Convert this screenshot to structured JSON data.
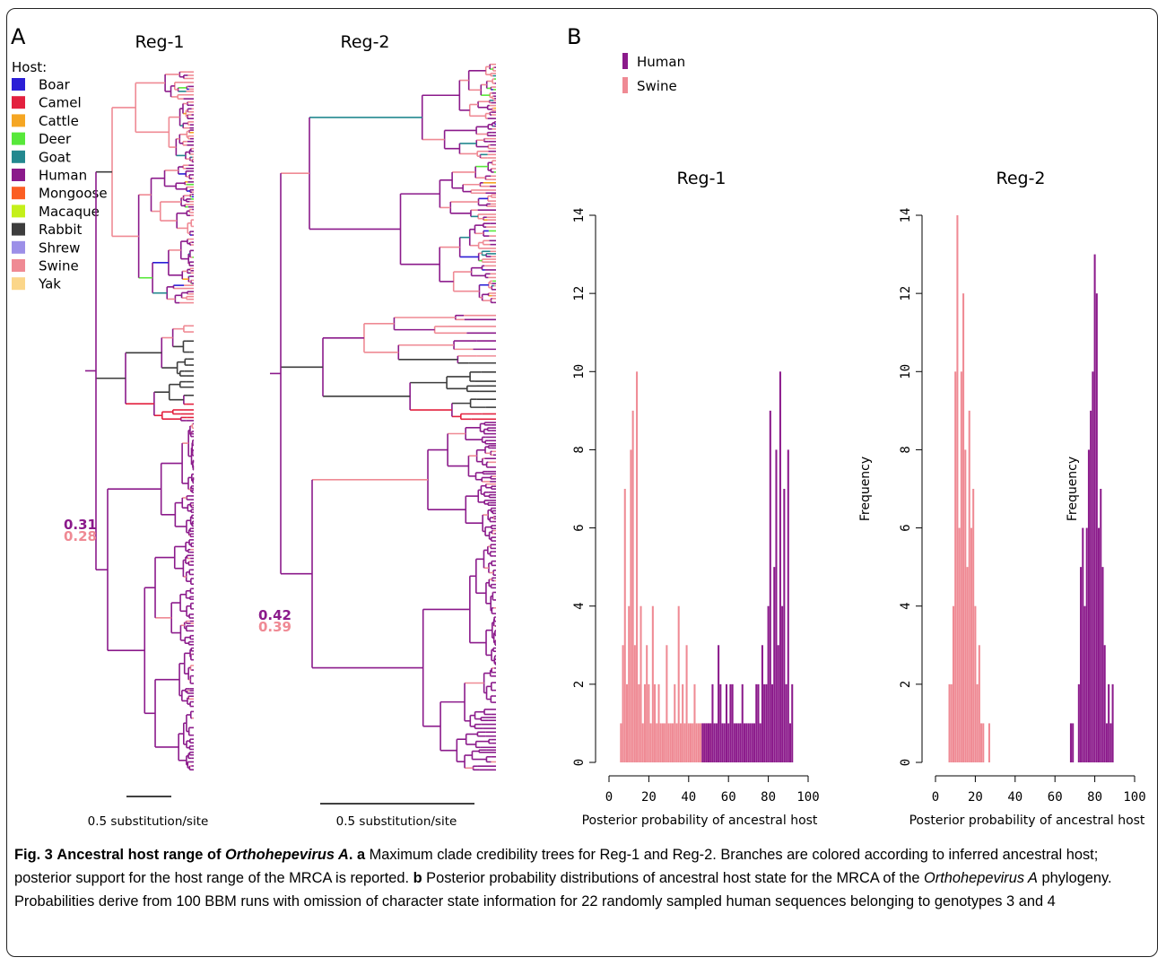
{
  "panel_a": {
    "label": "A",
    "tree_titles": [
      "Reg-1",
      "Reg-2"
    ],
    "legend_title": "Host:",
    "hosts": [
      {
        "name": "Boar",
        "color": "#2b1fd6"
      },
      {
        "name": "Camel",
        "color": "#e3203e"
      },
      {
        "name": "Cattle",
        "color": "#f5a623"
      },
      {
        "name": "Deer",
        "color": "#57e83a"
      },
      {
        "name": "Goat",
        "color": "#23888f"
      },
      {
        "name": "Human",
        "color": "#8b1a8b"
      },
      {
        "name": "Mongoose",
        "color": "#fb5e23"
      },
      {
        "name": "Macaque",
        "color": "#c4f01a"
      },
      {
        "name": "Rabbit",
        "color": "#3d3d3d"
      },
      {
        "name": "Shrew",
        "color": "#9c8fe8"
      },
      {
        "name": "Swine",
        "color": "#ef8a94"
      },
      {
        "name": "Yak",
        "color": "#fbd68a"
      }
    ],
    "reg1_support": {
      "human": "0.31",
      "swine": "0.28"
    },
    "reg2_support": {
      "human": "0.42",
      "swine": "0.39"
    },
    "scale_label": "0.5 substitution/site"
  },
  "panel_b": {
    "label": "B",
    "legend": [
      {
        "name": "Human",
        "color": "#8b1a8b"
      },
      {
        "name": "Swine",
        "color": "#ef8a94"
      }
    ]
  },
  "chart_data": [
    {
      "type": "bar",
      "title": "Reg-1",
      "xlabel": "Posterior probability of ancestral host",
      "ylabel": "Frequency",
      "xlim": [
        0,
        100
      ],
      "ylim": [
        0,
        14
      ],
      "xticks": [
        0,
        20,
        40,
        60,
        80,
        100
      ],
      "yticks": [
        0,
        2,
        4,
        6,
        8,
        10,
        12,
        14
      ],
      "series": [
        {
          "name": "Swine",
          "x": [
            6,
            7,
            8,
            9,
            10,
            11,
            12,
            13,
            14,
            15,
            16,
            17,
            18,
            19,
            20,
            21,
            22,
            23,
            24,
            25,
            26,
            27,
            28,
            29,
            30,
            31,
            32,
            33,
            34,
            35,
            36,
            37,
            38,
            39,
            40,
            41,
            42,
            43,
            44,
            45,
            46,
            47,
            48,
            49,
            50,
            51
          ],
          "values": [
            1,
            3,
            7,
            2,
            4,
            8,
            9,
            3,
            10,
            2,
            4,
            1,
            2,
            3,
            2,
            1,
            4,
            2,
            1,
            2,
            1,
            1,
            1,
            3,
            1,
            1,
            1,
            2,
            1,
            4,
            1,
            2,
            1,
            3,
            1,
            1,
            1,
            2,
            1,
            1,
            1,
            1,
            1,
            1,
            1,
            1
          ]
        },
        {
          "name": "Human",
          "x": [
            47,
            48,
            49,
            50,
            51,
            52,
            53,
            54,
            55,
            56,
            57,
            58,
            59,
            60,
            61,
            62,
            63,
            64,
            65,
            66,
            67,
            68,
            69,
            70,
            71,
            72,
            73,
            74,
            75,
            76,
            77,
            78,
            79,
            80,
            81,
            82,
            83,
            84,
            85,
            86,
            87,
            88,
            89,
            90,
            91,
            92
          ],
          "values": [
            1,
            1,
            1,
            1,
            1,
            2,
            1,
            1,
            3,
            2,
            1,
            1,
            2,
            1,
            2,
            2,
            1,
            1,
            1,
            1,
            2,
            1,
            1,
            1,
            1,
            1,
            1,
            2,
            2,
            1,
            3,
            2,
            2,
            4,
            9,
            2,
            5,
            8,
            3,
            10,
            4,
            7,
            2,
            8,
            1,
            2
          ]
        }
      ]
    },
    {
      "type": "bar",
      "title": "Reg-2",
      "xlabel": "Posterior probability of ancestral host",
      "ylabel": "Frequency",
      "xlim": [
        0,
        100
      ],
      "ylim": [
        0,
        14
      ],
      "xticks": [
        0,
        20,
        40,
        60,
        80,
        100
      ],
      "yticks": [
        0,
        2,
        4,
        6,
        8,
        10,
        12,
        14
      ],
      "series": [
        {
          "name": "Swine",
          "x": [
            7,
            8,
            9,
            10,
            11,
            12,
            13,
            14,
            15,
            16,
            17,
            18,
            19,
            20,
            21,
            22,
            23,
            24,
            27
          ],
          "values": [
            2,
            2,
            4,
            10,
            14,
            6,
            10,
            12,
            8,
            5,
            9,
            6,
            7,
            4,
            2,
            3,
            1,
            1,
            1
          ]
        },
        {
          "name": "Human",
          "x": [
            68,
            69,
            72,
            73,
            74,
            75,
            76,
            77,
            78,
            79,
            80,
            81,
            82,
            83,
            84,
            85,
            86,
            87,
            88,
            89
          ],
          "values": [
            1,
            1,
            2,
            5,
            6,
            4,
            6,
            8,
            9,
            10,
            13,
            12,
            6,
            7,
            5,
            3,
            1,
            2,
            1,
            2
          ]
        }
      ]
    }
  ],
  "caption": {
    "fig": "Fig. 3",
    "title_prefix": "Ancestral host range of ",
    "title_italic": "Orthohepevirus A",
    "title_suffix": ".",
    "a_label": "a",
    "a_text": " Maximum clade credibility trees for Reg-1 and Reg-2. Branches are colored according to inferred ancestral host; posterior support for the host range of the MRCA is reported.",
    "b_label": "b",
    "b_text_1": " Posterior probability distributions of ancestral host state for the MRCA of the ",
    "b_italic": "Orthohepevirus A",
    "b_text_2": " phylogeny. Probabilities derive from 100 BBM runs with omission of character state information for 22 randomly sampled human sequences belonging to genotypes 3 and 4"
  }
}
